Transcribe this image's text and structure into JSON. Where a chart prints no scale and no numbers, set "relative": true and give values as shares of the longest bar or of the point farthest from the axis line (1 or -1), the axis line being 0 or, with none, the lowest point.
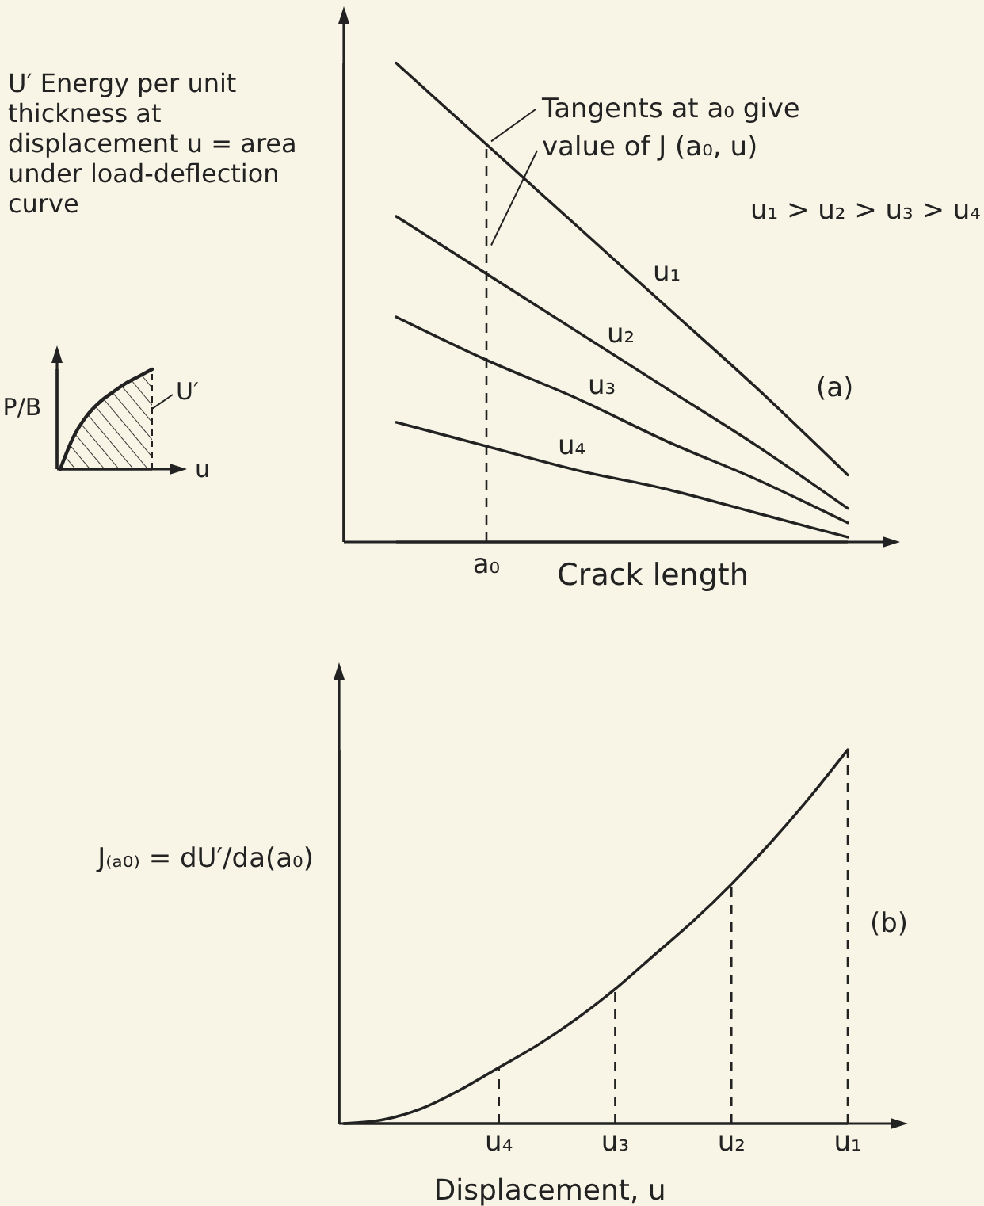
{
  "chart_data": [
    {
      "type": "line",
      "relative": true,
      "ylabel": "U′ Energy per unit thickness at displacement u = area under load-deflection curve",
      "xlabel": "Crack length",
      "categories": [
        null,
        null,
        null,
        null,
        null,
        null
      ],
      "series": [
        {
          "name": "u₁",
          "color": "#222222",
          "values": [
            1,
            0.83,
            0.66,
            0.49,
            0.32,
            0.14
          ]
        },
        {
          "name": "u₂",
          "color": "#222222",
          "values": [
            0.68,
            0.56,
            0.44,
            0.32,
            0.2,
            0.07
          ]
        },
        {
          "name": "u₃",
          "color": "#222222",
          "values": [
            0.47,
            0.38,
            0.3,
            0.21,
            0.13,
            0.04
          ]
        },
        {
          "name": "u₄",
          "color": "#222222",
          "values": [
            0.25,
            0.2,
            0.15,
            0.11,
            0.06,
            0.01
          ]
        }
      ],
      "ref_lines": [
        {
          "axis": "x",
          "value": "a₀",
          "line_style": "dashed"
        }
      ],
      "annotations": [
        "Tangents at a₀ give value of J (a₀, u)",
        "u₁ > u₂ > u₃ > u₄",
        "(a)"
      ]
    },
    {
      "type": "area",
      "relative": true,
      "xlabel": "u",
      "ylabel": "P/B",
      "categories": [
        null,
        null,
        null,
        null,
        null,
        null,
        null,
        null
      ],
      "values": [
        0,
        0.32,
        0.53,
        0.67,
        0.77,
        0.86,
        0.93,
        1
      ],
      "color": "#222222",
      "annotations": [
        "U′"
      ]
    },
    {
      "type": "line",
      "relative": true,
      "ylabel": "J₍ₐ₀₎ = dU′/da(a₀)",
      "xlabel": "Displacement, u",
      "categories": [
        null,
        null,
        null,
        null,
        "u₄",
        null,
        null,
        "u₃",
        null,
        null,
        "u₂",
        null,
        null,
        "u₁"
      ],
      "values": [
        0,
        0.01,
        0.04,
        0.09,
        0.15,
        0.21,
        0.28,
        0.36,
        0.45,
        0.54,
        0.64,
        0.75,
        0.87,
        1
      ],
      "color": "#222222",
      "ref_lines": [
        {
          "axis": "x",
          "value": "u₄",
          "line_style": "dashed"
        },
        {
          "axis": "x",
          "value": "u₃",
          "line_style": "dashed"
        },
        {
          "axis": "x",
          "value": "u₂",
          "line_style": "dashed"
        },
        {
          "axis": "x",
          "value": "u₁",
          "line_style": "dashed"
        }
      ],
      "annotations": [
        "(b)"
      ]
    }
  ]
}
